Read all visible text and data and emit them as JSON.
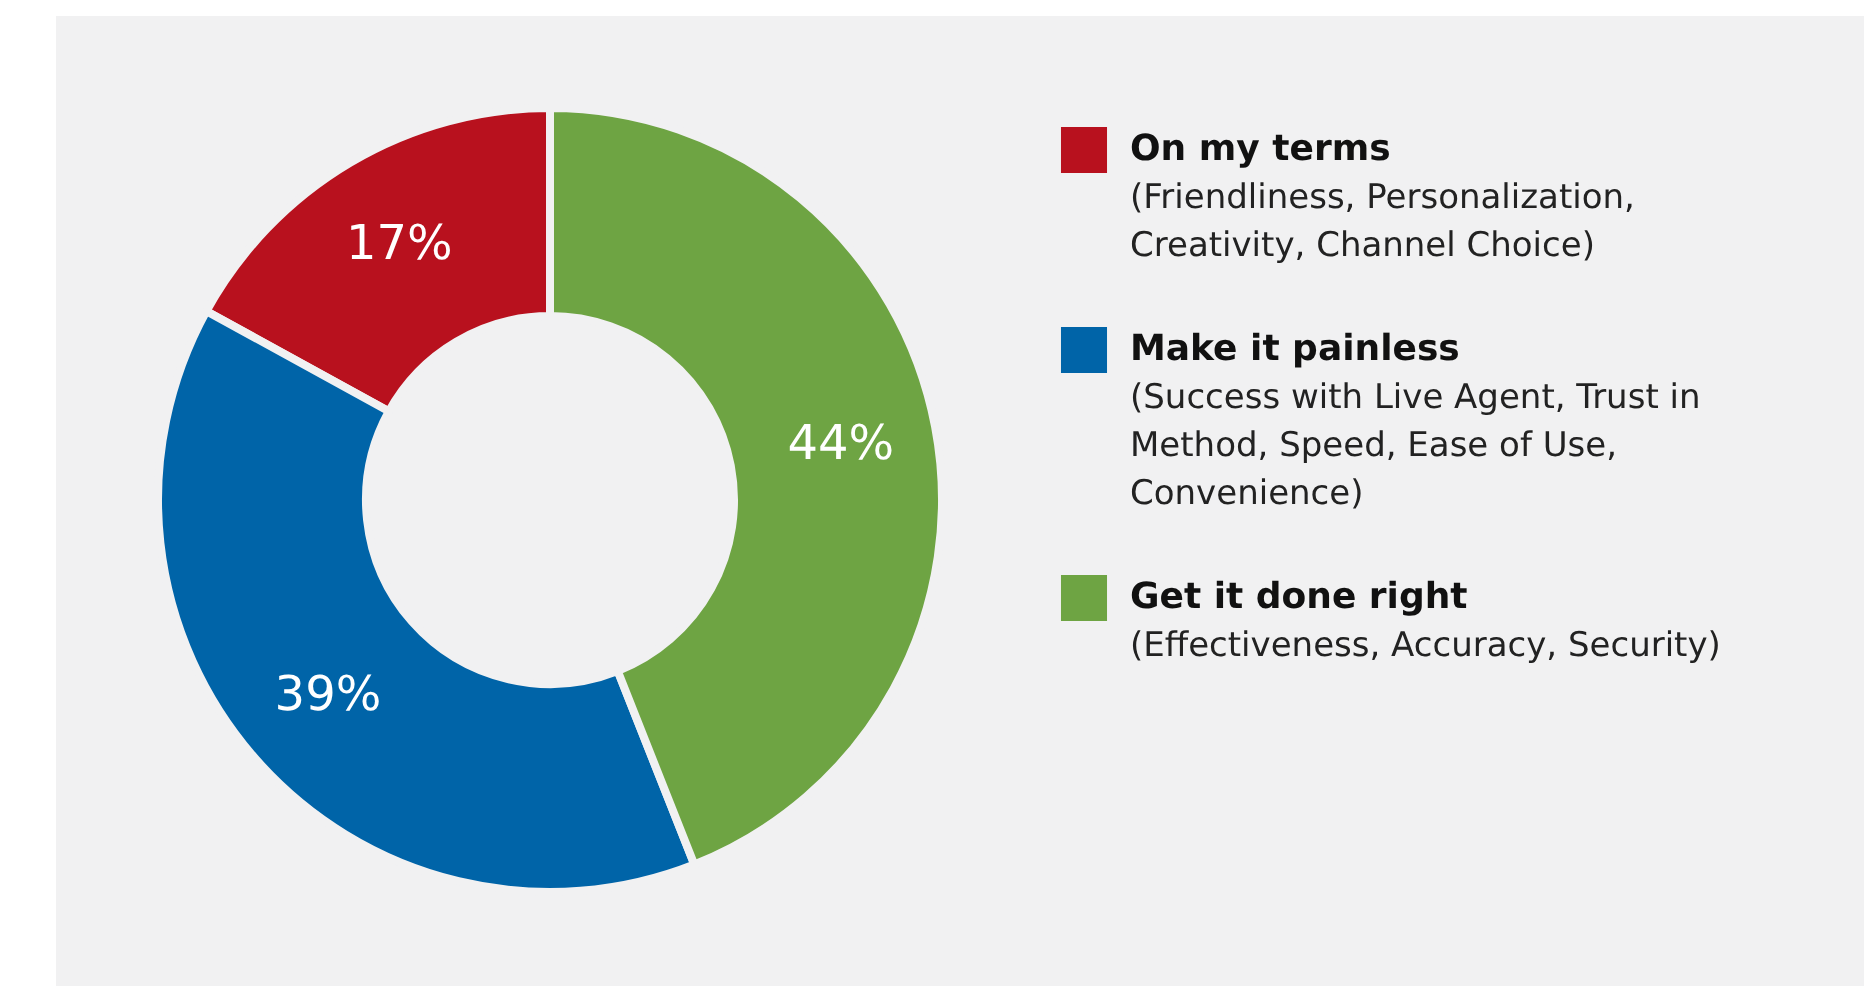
{
  "chart_data": {
    "type": "donut",
    "categories": [
      "On my terms",
      "Make it painless",
      "Get it done right"
    ],
    "values": [
      17,
      39,
      44
    ],
    "colors": [
      "#b8111e",
      "#0064a8",
      "#6ea443"
    ],
    "value_labels": [
      "17%",
      "39%",
      "44%"
    ],
    "legend": "right",
    "annotations": [
      "(Friendliness, Personalization, Creativity, Channel Choice)",
      "(Success with Live Agent, Trust in Method, Speed, Ease of Use, Convenience)",
      "(Effectiveness, Accuracy, Security)"
    ]
  }
}
